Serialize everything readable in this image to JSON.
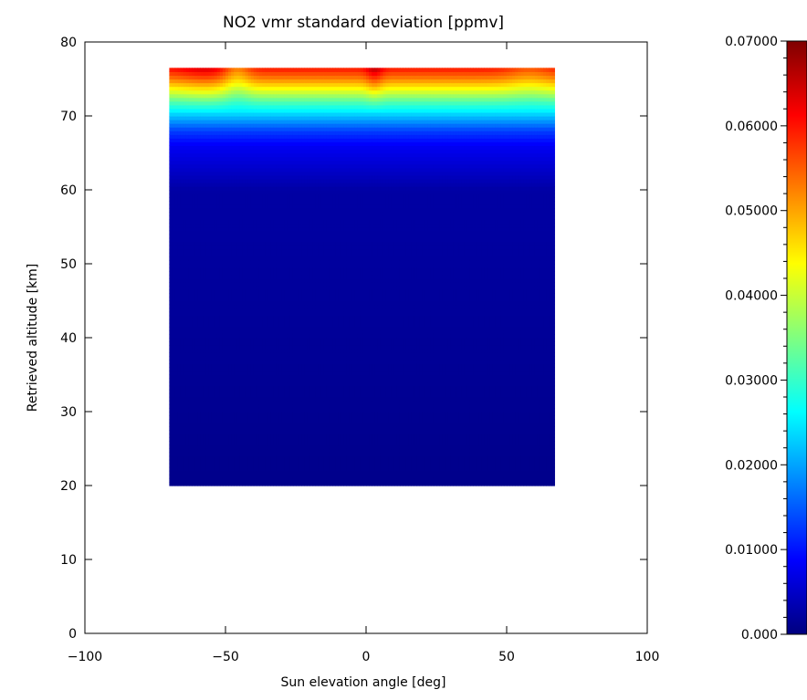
{
  "chart_data": {
    "type": "heatmap",
    "title": "NO2 vmr standard deviation [ppmv]",
    "xlabel": "Sun elevation angle [deg]",
    "ylabel": "Retrieved altitude [km]",
    "xlim": [
      -100,
      100
    ],
    "ylim": [
      0,
      80
    ],
    "x_ticks": [
      -100,
      -50,
      0,
      50,
      100
    ],
    "x_tick_labels": [
      "−100",
      "−50",
      "0",
      "50",
      "100"
    ],
    "y_ticks": [
      0,
      10,
      20,
      30,
      40,
      50,
      60,
      70,
      80
    ],
    "y_tick_labels": [
      "0",
      "10",
      "20",
      "30",
      "40",
      "50",
      "60",
      "70",
      "80"
    ],
    "data_extent": {
      "x": [
        -70,
        67
      ],
      "y": [
        20,
        76.5
      ]
    },
    "colormap": "jet",
    "colorbar": {
      "range": [
        0.0,
        0.07
      ],
      "tick_values": [
        0.0,
        0.01,
        0.02,
        0.03,
        0.04,
        0.05,
        0.06,
        0.07
      ],
      "tick_labels": [
        "0.000",
        "0.01000",
        "0.02000",
        "0.03000",
        "0.04000",
        "0.05000",
        "0.06000",
        "0.07000"
      ]
    },
    "altitude_profile": {
      "altitudes": [
        20,
        60,
        66,
        68,
        70,
        72,
        73.5,
        75,
        76.5
      ],
      "values": [
        0.0008,
        0.0025,
        0.008,
        0.013,
        0.022,
        0.032,
        0.042,
        0.052,
        0.06
      ]
    },
    "features": [
      {
        "x": -57,
        "y_top": 76.5,
        "peak_value": 0.064,
        "width": 10
      },
      {
        "x": -46,
        "y_top": 76.5,
        "peak_value": 0.052,
        "width": 5
      },
      {
        "x": 3,
        "y_top": 76.5,
        "peak_value": 0.066,
        "width": 3
      },
      {
        "x": 58,
        "y_top": 76.5,
        "peak_value": 0.056,
        "width": 8
      }
    ]
  }
}
